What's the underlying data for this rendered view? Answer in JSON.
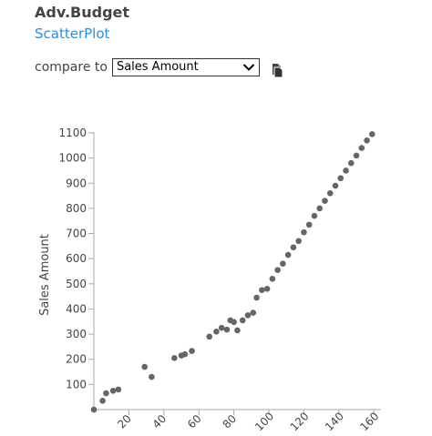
{
  "header": {
    "title": "Adv.Budget",
    "subtitle": "ScatterPlot"
  },
  "compare": {
    "label": "compare to",
    "selected": "Sales Amount"
  },
  "icons": {
    "dropdown": "chevron-down-icon",
    "copy": "copy-icon"
  },
  "colors": {
    "accent": "#2a8fd8",
    "point": "#666666",
    "axis": "#aaaaaa"
  },
  "chart_data": {
    "type": "scatter",
    "xlabel": "",
    "ylabel": "Sales Amount",
    "xlim": [
      0,
      163
    ],
    "ylim": [
      0,
      1100
    ],
    "x_ticks": [
      20,
      40,
      60,
      80,
      100,
      120,
      140,
      160
    ],
    "y_ticks": [
      100,
      200,
      300,
      400,
      500,
      600,
      700,
      800,
      900,
      1000,
      1100
    ],
    "grid": false,
    "points": [
      {
        "x": 0,
        "y": 0
      },
      {
        "x": 5,
        "y": 35
      },
      {
        "x": 7,
        "y": 65
      },
      {
        "x": 11,
        "y": 75
      },
      {
        "x": 14,
        "y": 80
      },
      {
        "x": 29,
        "y": 170
      },
      {
        "x": 33,
        "y": 130
      },
      {
        "x": 46,
        "y": 205
      },
      {
        "x": 50,
        "y": 215
      },
      {
        "x": 52,
        "y": 220
      },
      {
        "x": 56,
        "y": 233
      },
      {
        "x": 66,
        "y": 290
      },
      {
        "x": 70,
        "y": 310
      },
      {
        "x": 73,
        "y": 325
      },
      {
        "x": 76,
        "y": 318
      },
      {
        "x": 78,
        "y": 355
      },
      {
        "x": 80,
        "y": 348
      },
      {
        "x": 82,
        "y": 315
      },
      {
        "x": 85,
        "y": 355
      },
      {
        "x": 88,
        "y": 375
      },
      {
        "x": 91,
        "y": 385
      },
      {
        "x": 93,
        "y": 445
      },
      {
        "x": 96,
        "y": 475
      },
      {
        "x": 99,
        "y": 480
      },
      {
        "x": 102,
        "y": 520
      },
      {
        "x": 105,
        "y": 555
      },
      {
        "x": 108,
        "y": 580
      },
      {
        "x": 111,
        "y": 615
      },
      {
        "x": 114,
        "y": 645
      },
      {
        "x": 117,
        "y": 670
      },
      {
        "x": 120,
        "y": 705
      },
      {
        "x": 123,
        "y": 735
      },
      {
        "x": 126,
        "y": 770
      },
      {
        "x": 129,
        "y": 800
      },
      {
        "x": 132,
        "y": 830
      },
      {
        "x": 135,
        "y": 860
      },
      {
        "x": 138,
        "y": 890
      },
      {
        "x": 141,
        "y": 920
      },
      {
        "x": 144,
        "y": 950
      },
      {
        "x": 147,
        "y": 980
      },
      {
        "x": 150,
        "y": 1010
      },
      {
        "x": 153,
        "y": 1040
      },
      {
        "x": 156,
        "y": 1070
      },
      {
        "x": 159,
        "y": 1095
      }
    ]
  }
}
